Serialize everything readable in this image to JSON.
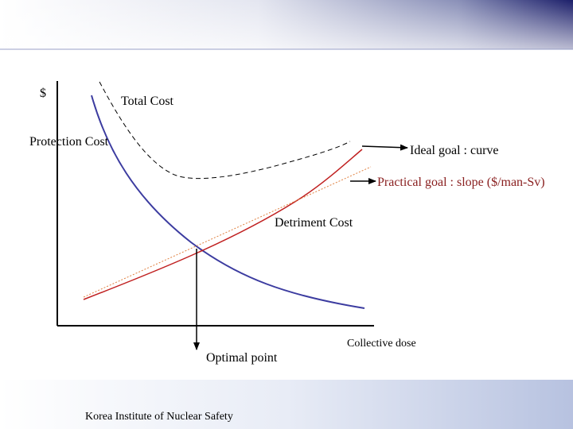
{
  "diagram": {
    "y_axis_label": "$",
    "total_cost": "Total Cost",
    "protection_cost": "Protection Cost",
    "ideal_goal": "Ideal goal : curve",
    "practical_goal": "Practical goal : slope ($/man-Sv)",
    "detriment_cost": "Detriment Cost",
    "optimal_point": "Optimal point",
    "x_axis_label": "Collective dose"
  },
  "footer": {
    "organization": "Korea Institute of Nuclear Safety"
  }
}
